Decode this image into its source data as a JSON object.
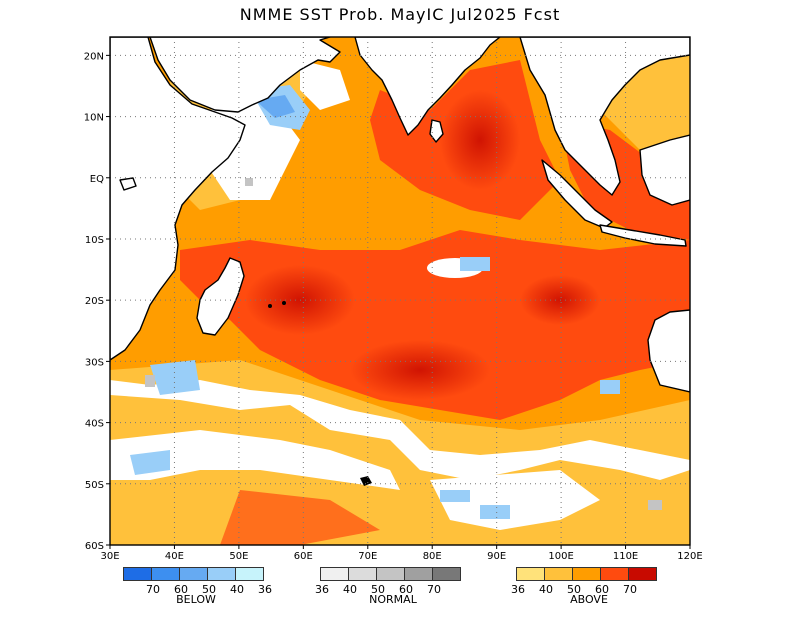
{
  "title": "NMME SST Prob. MayIC  Jul2025 Fcst",
  "map": {
    "lon_range": [
      30,
      120
    ],
    "lat_range": [
      -60,
      23
    ],
    "lon_ticks": [
      "30E",
      "40E",
      "50E",
      "60E",
      "70E",
      "80E",
      "90E",
      "100E",
      "110E",
      "120E"
    ],
    "lat_ticks": [
      "20N",
      "10N",
      "EQ",
      "10S",
      "20S",
      "30S",
      "40S",
      "50S",
      "60S"
    ],
    "grid": "dotted"
  },
  "legend": {
    "below": {
      "label": "BELOW",
      "ticks": [
        "70",
        "60",
        "50",
        "40",
        "36"
      ],
      "colors": [
        "#1e6de6",
        "#3d8ff0",
        "#66aaf2",
        "#99cef8",
        "#c7f3fb"
      ]
    },
    "normal": {
      "label": "NORMAL",
      "ticks": [
        "36",
        "40",
        "50",
        "60",
        "70"
      ],
      "colors": [
        "#f0f0f0",
        "#dcdcdc",
        "#c4c4c4",
        "#a0a0a0",
        "#787878"
      ]
    },
    "above": {
      "label": "ABOVE",
      "ticks": [
        "36",
        "40",
        "50",
        "60",
        "70"
      ],
      "colors": [
        "#ffe27a",
        "#ffc13b",
        "#ff9d00",
        "#ff4b0f",
        "#c80a00"
      ]
    }
  }
}
